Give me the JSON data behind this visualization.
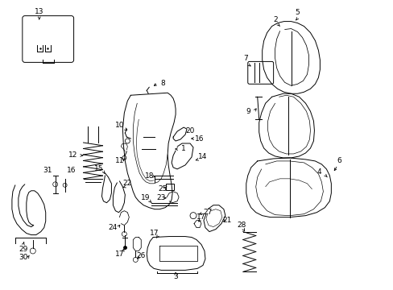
{
  "bg_color": "#ffffff",
  "line_color": "#000000",
  "font_size": 6.5,
  "figsize": [
    4.89,
    3.6
  ],
  "dpi": 100
}
